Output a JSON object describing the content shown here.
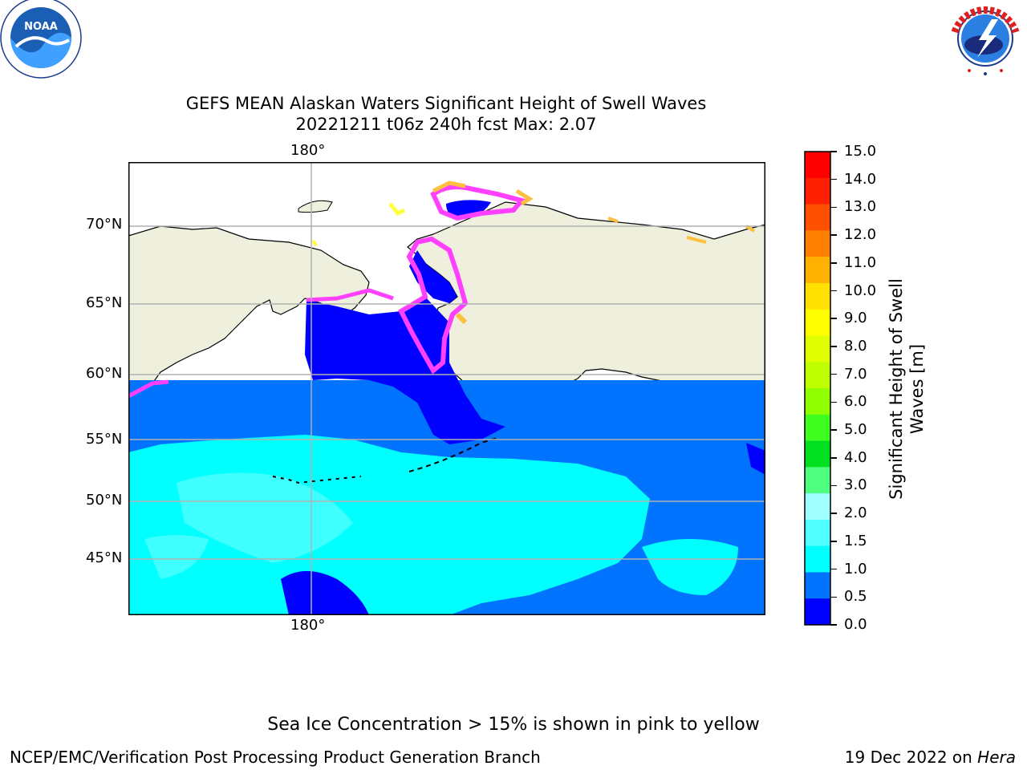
{
  "title": {
    "line1": "GEFS MEAN Alaskan Waters Significant Height of Swell Waves",
    "line2": "20221211 t06z 240h fcst   Max: 2.07"
  },
  "logos": {
    "noaa_text": "NOAA",
    "noaa_ring": "NATIONAL OCEANIC AND ATMOSPHERIC ADMINISTRATION · U.S. DEPARTMENT OF COMMERCE",
    "nws_ring": "NATIONAL WEATHER SERVICE"
  },
  "map": {
    "lon_top": "180°",
    "lon_bottom": "180°",
    "lat_labels": [
      "70°N",
      "65°N",
      "60°N",
      "55°N",
      "50°N",
      "45°N"
    ],
    "colors": {
      "land": "#efefde",
      "ocean_05_10": "#0073ff",
      "ocean_00_05": "#0000ff",
      "ocean_10_15": "#00ffff",
      "ocean_15_20": "#3fffff",
      "ice_pink": "#ff40ff",
      "ice_orange": "#ffc040",
      "ice_yellow": "#ffff40",
      "grid": "#b0b0b0"
    }
  },
  "colorbar": {
    "label": "Significant Height of Swell Waves [m]",
    "ticks": [
      "15.0",
      "14.0",
      "13.0",
      "12.0",
      "11.0",
      "10.0",
      "9.0",
      "8.0",
      "7.0",
      "6.0",
      "5.0",
      "4.0",
      "3.0",
      "2.0",
      "1.5",
      "1.0",
      "0.5",
      "0.0"
    ],
    "colors_top_to_bottom": [
      "#ff0000",
      "#ff2000",
      "#ff5000",
      "#ff8000",
      "#ffb000",
      "#ffe000",
      "#ffff00",
      "#e0ff00",
      "#c0ff00",
      "#90ff00",
      "#40ff20",
      "#00e020",
      "#50ff80",
      "#a0ffff",
      "#50ffff",
      "#00ffff",
      "#0073ff",
      "#0000ff"
    ]
  },
  "note": "Sea Ice Concentration > 15% is shown in pink to yellow",
  "footer": {
    "left": "NCEP/EMC/Verification Post Processing Product Generation Branch",
    "right_prefix": "19 Dec 2022 on ",
    "right_host": "Hera"
  }
}
